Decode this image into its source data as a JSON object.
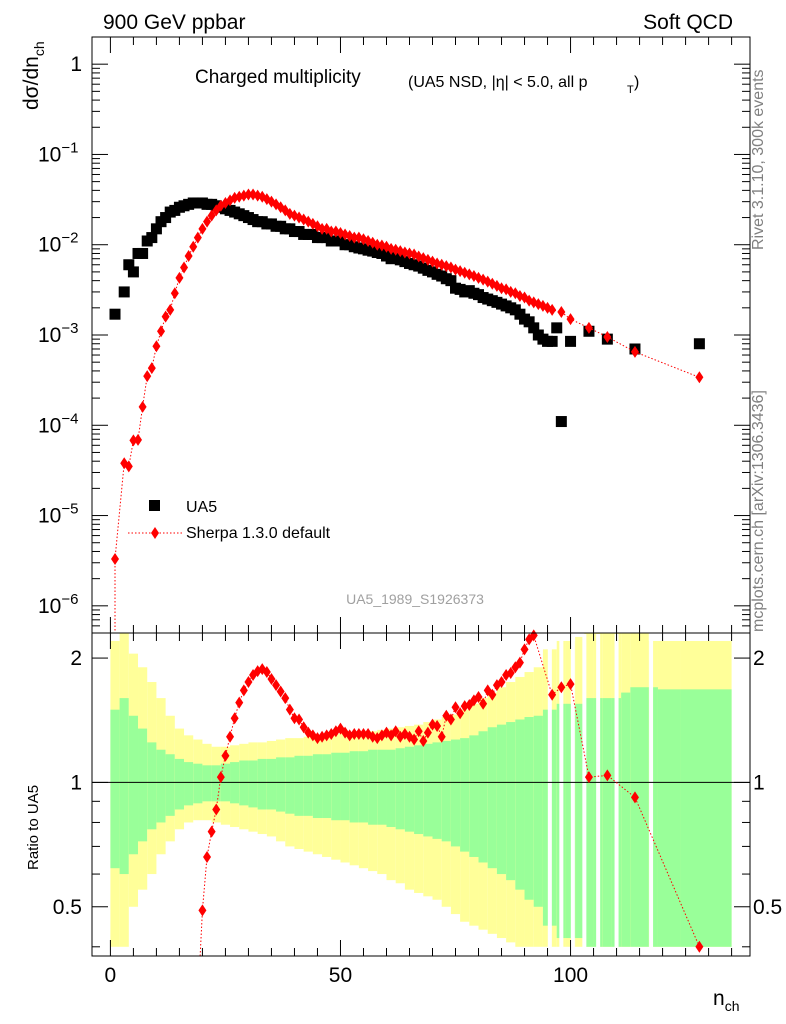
{
  "header": {
    "energy_label": "900 GeV ppbar",
    "category_label": "Soft QCD"
  },
  "side_labels": {
    "rivet": "Rivet 3.1.10,  300k events",
    "mcplots": "mcplots.cern.ch [arXiv:1306.3436]"
  },
  "colors": {
    "data": "#000000",
    "mc": "#ff0000",
    "band_inner": "#99ff99",
    "band_outer": "#ffff99"
  },
  "chart_data": [
    {
      "type": "scatter",
      "panel": "main",
      "title": "Charged multiplicity",
      "subtitle": "(UA5 NSD, |η| < 5.0, all p",
      "subtitle_sub": "T",
      "subtitle_end": ")",
      "ylabel": "dσ/dn",
      "ylabel_sub": "ch",
      "yscale": "log",
      "ylim": [
        5e-07,
        2
      ],
      "xlim": [
        -4,
        139
      ],
      "ytick_labels": [
        {
          "value": 1,
          "mant": "1",
          "exp": ""
        },
        {
          "value": 0.1,
          "mant": "10",
          "exp": "−1"
        },
        {
          "value": 0.01,
          "mant": "10",
          "exp": "−2"
        },
        {
          "value": 0.001,
          "mant": "10",
          "exp": "−3"
        },
        {
          "value": 0.0001,
          "mant": "10",
          "exp": "−4"
        },
        {
          "value": 1e-05,
          "mant": "10",
          "exp": "−5"
        },
        {
          "value": 1e-06,
          "mant": "10",
          "exp": "−6"
        }
      ],
      "watermark": "UA5_1989_S1926373",
      "legend": {
        "position": "lower-left",
        "entries": [
          {
            "name": "UA5",
            "style": "square"
          },
          {
            "name": "Sherpa 1.3.0 default",
            "style": "diamond-dotted"
          }
        ]
      },
      "series": [
        {
          "name": "UA5",
          "x": [
            1,
            3,
            4,
            5,
            6,
            7,
            8,
            9,
            10,
            11,
            12,
            13,
            14,
            15,
            16,
            17,
            18,
            19,
            20,
            21,
            22,
            23,
            24,
            25,
            26,
            27,
            28,
            29,
            30,
            31,
            32,
            33,
            34,
            35,
            36,
            37,
            38,
            39,
            40,
            41,
            42,
            43,
            44,
            45,
            46,
            47,
            48,
            49,
            50,
            51,
            52,
            53,
            54,
            55,
            56,
            57,
            58,
            59,
            60,
            61,
            62,
            63,
            64,
            65,
            66,
            67,
            68,
            69,
            70,
            71,
            72,
            73,
            74,
            75,
            76,
            77,
            78,
            79,
            80,
            81,
            82,
            83,
            84,
            85,
            86,
            87,
            88,
            89,
            90,
            91,
            92,
            93,
            94,
            95,
            96,
            97,
            98,
            100,
            104,
            108,
            114,
            128
          ],
          "y": [
            0.0017,
            0.003,
            0.006,
            0.005,
            0.008,
            0.008,
            0.011,
            0.012,
            0.015,
            0.018,
            0.02,
            0.023,
            0.024,
            0.026,
            0.027,
            0.028,
            0.029,
            0.029,
            0.029,
            0.028,
            0.028,
            0.027,
            0.026,
            0.025,
            0.024,
            0.023,
            0.022,
            0.021,
            0.02,
            0.019,
            0.018,
            0.018,
            0.017,
            0.017,
            0.016,
            0.016,
            0.015,
            0.015,
            0.014,
            0.014,
            0.013,
            0.013,
            0.013,
            0.012,
            0.012,
            0.012,
            0.011,
            0.011,
            0.011,
            0.01,
            0.01,
            0.0095,
            0.0092,
            0.009,
            0.0087,
            0.0085,
            0.0082,
            0.008,
            0.0075,
            0.007,
            0.0072,
            0.0068,
            0.0065,
            0.0062,
            0.006,
            0.0058,
            0.0055,
            0.0052,
            0.005,
            0.0047,
            0.0045,
            0.0042,
            0.004,
            0.0033,
            0.0032,
            0.003,
            0.0031,
            0.0029,
            0.0028,
            0.0026,
            0.0025,
            0.0024,
            0.0023,
            0.0022,
            0.0021,
            0.002,
            0.0019,
            0.0017,
            0.0015,
            0.0014,
            0.0012,
            0.001,
            0.0009,
            0.00085,
            0.00085,
            0.0012,
            0.00011,
            0.00085,
            0.0011,
            0.0009,
            0.0007,
            0.0008
          ]
        },
        {
          "name": "Sherpa 1.3.0 default",
          "x": [
            1,
            3,
            4,
            5,
            6,
            7,
            8,
            9,
            10,
            11,
            12,
            13,
            14,
            15,
            16,
            17,
            18,
            19,
            20,
            21,
            22,
            23,
            24,
            25,
            26,
            27,
            28,
            29,
            30,
            31,
            32,
            33,
            34,
            35,
            36,
            37,
            38,
            39,
            40,
            41,
            42,
            43,
            44,
            45,
            46,
            47,
            48,
            49,
            50,
            51,
            52,
            53,
            54,
            55,
            56,
            57,
            58,
            59,
            60,
            61,
            62,
            63,
            64,
            65,
            66,
            67,
            68,
            69,
            70,
            71,
            72,
            73,
            74,
            75,
            76,
            77,
            78,
            79,
            80,
            81,
            82,
            83,
            84,
            85,
            86,
            87,
            88,
            89,
            90,
            91,
            92,
            93,
            94,
            95,
            96,
            98,
            100,
            104,
            108,
            114,
            128
          ],
          "y": [
            3.3e-06,
            3.8e-05,
            3.5e-05,
            6.8e-05,
            6.9e-05,
            0.00016,
            0.00035,
            0.00043,
            0.00075,
            0.0011,
            0.0016,
            0.0019,
            0.0029,
            0.0043,
            0.0056,
            0.0075,
            0.0095,
            0.012,
            0.015,
            0.018,
            0.021,
            0.024,
            0.027,
            0.029,
            0.031,
            0.033,
            0.034,
            0.035,
            0.036,
            0.036,
            0.035,
            0.034,
            0.032,
            0.03,
            0.028,
            0.026,
            0.024,
            0.022,
            0.021,
            0.02,
            0.019,
            0.018,
            0.017,
            0.016,
            0.015,
            0.015,
            0.014,
            0.014,
            0.0135,
            0.013,
            0.0125,
            0.012,
            0.012,
            0.0115,
            0.011,
            0.0105,
            0.01,
            0.0098,
            0.0095,
            0.009,
            0.0088,
            0.0085,
            0.0082,
            0.008,
            0.0078,
            0.0074,
            0.0071,
            0.0068,
            0.0065,
            0.0062,
            0.006,
            0.0058,
            0.0056,
            0.0053,
            0.0051,
            0.0049,
            0.0047,
            0.0045,
            0.0043,
            0.0041,
            0.0039,
            0.0037,
            0.0035,
            0.0033,
            0.0032,
            0.003,
            0.0029,
            0.0027,
            0.0026,
            0.0024,
            0.0023,
            0.0022,
            0.0021,
            0.002,
            0.0019,
            0.0018,
            0.0015,
            0.0012,
            0.00095,
            0.00065,
            0.00034
          ]
        }
      ]
    },
    {
      "type": "scatter",
      "panel": "ratio",
      "ylabel": "Ratio to UA5",
      "xlabel": "n",
      "xlabel_sub": "ch",
      "yscale": "log",
      "ylim": [
        0.38,
        2.3
      ],
      "xlim": [
        -4,
        139
      ],
      "reference_line": 1,
      "ytick_labels": [
        {
          "value": 2,
          "text": "2"
        },
        {
          "value": 1,
          "text": "1"
        },
        {
          "value": 0.5,
          "text": "0.5"
        }
      ],
      "xtick_labels": [
        {
          "value": 0,
          "text": "0"
        },
        {
          "value": 50,
          "text": "50"
        },
        {
          "value": 100,
          "text": "100"
        }
      ],
      "bands": {
        "x": [
          0,
          2,
          4,
          6,
          8,
          10,
          12,
          14,
          16,
          18,
          20,
          22,
          24,
          26,
          28,
          30,
          32,
          34,
          36,
          38,
          40,
          42,
          44,
          46,
          48,
          50,
          52,
          54,
          56,
          58,
          60,
          62,
          64,
          66,
          68,
          70,
          72,
          74,
          76,
          78,
          80,
          82,
          84,
          86,
          88,
          90,
          92,
          94,
          95,
          97,
          99,
          101,
          103,
          105,
          107,
          109,
          111,
          113,
          117,
          119,
          124,
          135
        ],
        "inner_hi": [
          1.5,
          1.6,
          1.45,
          1.35,
          1.25,
          1.2,
          1.17,
          1.14,
          1.12,
          1.11,
          1.1,
          1.1,
          1.11,
          1.12,
          1.13,
          1.13,
          1.14,
          1.14,
          1.15,
          1.15,
          1.16,
          1.16,
          1.17,
          1.17,
          1.18,
          1.18,
          1.19,
          1.19,
          1.2,
          1.2,
          1.2,
          1.21,
          1.22,
          1.23,
          1.24,
          1.25,
          1.26,
          1.27,
          1.28,
          1.3,
          1.33,
          1.36,
          1.38,
          1.4,
          1.42,
          1.44,
          1.45,
          1.5,
          1.5,
          1.55,
          1.55,
          1.55,
          1.6,
          1.6,
          1.6,
          1.6,
          1.65,
          1.7,
          1.7,
          1.68,
          1.68
        ],
        "inner_lo": [
          0.62,
          0.6,
          0.67,
          0.72,
          0.77,
          0.8,
          0.83,
          0.86,
          0.88,
          0.89,
          0.9,
          0.9,
          0.9,
          0.89,
          0.88,
          0.87,
          0.86,
          0.86,
          0.85,
          0.84,
          0.83,
          0.83,
          0.82,
          0.82,
          0.81,
          0.81,
          0.8,
          0.8,
          0.79,
          0.79,
          0.78,
          0.77,
          0.76,
          0.75,
          0.74,
          0.73,
          0.72,
          0.7,
          0.68,
          0.66,
          0.64,
          0.62,
          0.6,
          0.58,
          0.55,
          0.52,
          0.5,
          0.45,
          0.45,
          0.42,
          0.42,
          0.42,
          0.4,
          0.4,
          0.4,
          0.4,
          0.4,
          0.4,
          0.4,
          0.4,
          0.4
        ],
        "outer_hi": [
          2.2,
          2.3,
          2.05,
          1.9,
          1.75,
          1.6,
          1.45,
          1.35,
          1.3,
          1.27,
          1.24,
          1.22,
          1.22,
          1.23,
          1.24,
          1.25,
          1.25,
          1.26,
          1.27,
          1.28,
          1.28,
          1.29,
          1.3,
          1.3,
          1.31,
          1.32,
          1.32,
          1.33,
          1.33,
          1.34,
          1.35,
          1.36,
          1.37,
          1.38,
          1.4,
          1.42,
          1.44,
          1.46,
          1.5,
          1.55,
          1.6,
          1.65,
          1.7,
          1.75,
          1.8,
          1.85,
          1.9,
          2.1,
          2.1,
          2.2,
          2.2,
          2.25,
          2.3,
          2.3,
          2.3,
          2.3,
          2.3,
          2.3,
          2.2,
          2.2,
          2.2
        ],
        "outer_lo": [
          0.4,
          0.4,
          0.5,
          0.55,
          0.6,
          0.67,
          0.72,
          0.77,
          0.8,
          0.81,
          0.81,
          0.8,
          0.79,
          0.78,
          0.77,
          0.76,
          0.75,
          0.74,
          0.72,
          0.7,
          0.69,
          0.68,
          0.67,
          0.66,
          0.65,
          0.64,
          0.63,
          0.62,
          0.61,
          0.6,
          0.58,
          0.57,
          0.55,
          0.54,
          0.53,
          0.52,
          0.5,
          0.48,
          0.46,
          0.45,
          0.44,
          0.43,
          0.42,
          0.41,
          0.4,
          0.4,
          0.4,
          0.4,
          0.4,
          0.4,
          0.4,
          0.4,
          0.4,
          0.4,
          0.4,
          0.4,
          0.4,
          0.4,
          0.4,
          0.4,
          0.4
        ]
      },
      "series": [
        {
          "name": "Sherpa 1.3.0 default / UA5",
          "x": [
            20,
            21,
            22,
            23,
            24,
            25,
            26,
            27,
            28,
            29,
            30,
            31,
            32,
            33,
            34,
            35,
            36,
            37,
            38,
            39,
            40,
            41,
            42,
            43,
            44,
            45,
            46,
            47,
            48,
            49,
            50,
            51,
            52,
            53,
            54,
            55,
            56,
            57,
            58,
            59,
            60,
            61,
            62,
            63,
            64,
            65,
            66,
            67,
            68,
            69,
            70,
            71,
            72,
            73,
            74,
            75,
            76,
            77,
            78,
            79,
            80,
            81,
            82,
            83,
            84,
            85,
            86,
            87,
            88,
            89,
            90,
            91,
            92,
            96,
            98,
            100,
            104,
            108,
            114,
            128
          ],
          "y": [
            0.49,
            0.66,
            0.76,
            0.86,
            1.03,
            1.16,
            1.29,
            1.43,
            1.56,
            1.67,
            1.75,
            1.82,
            1.86,
            1.88,
            1.85,
            1.78,
            1.72,
            1.66,
            1.6,
            1.5,
            1.43,
            1.42,
            1.36,
            1.32,
            1.3,
            1.28,
            1.29,
            1.3,
            1.31,
            1.33,
            1.35,
            1.32,
            1.3,
            1.31,
            1.31,
            1.31,
            1.31,
            1.29,
            1.28,
            1.3,
            1.32,
            1.3,
            1.33,
            1.29,
            1.31,
            1.29,
            1.27,
            1.33,
            1.26,
            1.32,
            1.38,
            1.37,
            1.29,
            1.45,
            1.42,
            1.52,
            1.47,
            1.53,
            1.54,
            1.58,
            1.61,
            1.55,
            1.67,
            1.63,
            1.72,
            1.75,
            1.82,
            1.84,
            1.9,
            1.95,
            2.1,
            2.22,
            2.27,
            1.63,
            1.7,
            1.73,
            1.03,
            1.04,
            0.92,
            0.4
          ]
        }
      ]
    }
  ]
}
